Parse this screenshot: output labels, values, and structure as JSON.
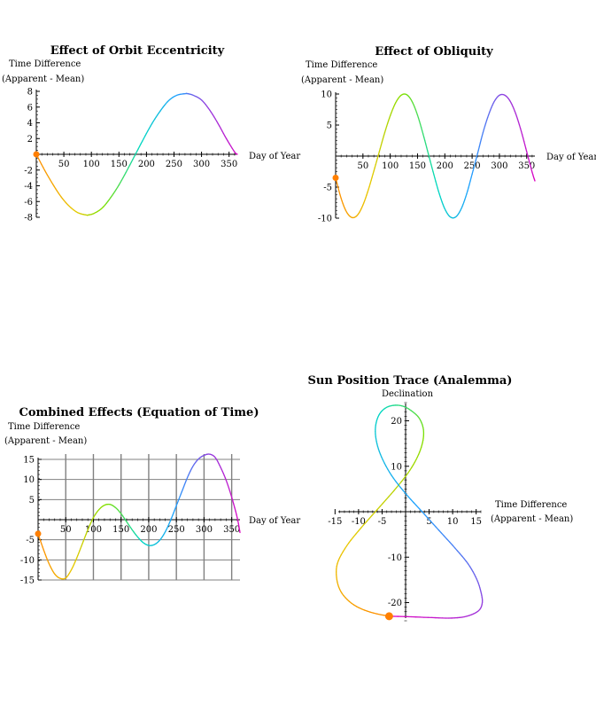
{
  "chart_data": [
    {
      "type": "line",
      "title": "Effect of Orbit Eccentricity",
      "ylabel": [
        "Time Difference",
        "(Apparent - Mean)"
      ],
      "xlabel": "Day of Year",
      "xlim": [
        0,
        365
      ],
      "ylim": [
        -8,
        8
      ],
      "xticks": [
        "50",
        "100",
        "150",
        "200",
        "250",
        "300",
        "350"
      ],
      "yticks": [
        "8",
        "6",
        "4",
        "2",
        "-2",
        "-4",
        "-6",
        "-8"
      ],
      "grid": false,
      "series": [
        {
          "x": [
            0,
            15,
            30,
            45,
            60,
            75,
            90,
            95,
            105,
            120,
            135,
            150,
            165,
            180,
            195,
            210,
            225,
            240,
            255,
            270,
            275,
            285,
            300,
            315,
            330,
            345,
            360,
            365
          ],
          "y": [
            0,
            -2.0,
            -3.8,
            -5.4,
            -6.6,
            -7.4,
            -7.7,
            -7.7,
            -7.5,
            -6.8,
            -5.5,
            -3.9,
            -2.0,
            0,
            2.0,
            3.9,
            5.5,
            6.8,
            7.5,
            7.7,
            7.7,
            7.5,
            6.9,
            5.6,
            3.9,
            2.0,
            0.3,
            0
          ]
        }
      ],
      "marker": {
        "x": 0,
        "y": 0
      }
    },
    {
      "type": "line",
      "title": "Effect of Obliquity",
      "ylabel": [
        "Time Difference",
        "(Apparent - Mean)"
      ],
      "xlabel": "Day of Year",
      "xlim": [
        0,
        365
      ],
      "ylim": [
        -10,
        10
      ],
      "xticks": [
        "50",
        "100",
        "150",
        "200",
        "250",
        "300",
        "350"
      ],
      "yticks": [
        "10",
        "5",
        "-5",
        "-10"
      ],
      "grid": false,
      "series": [
        {
          "x": [
            0,
            10,
            20,
            30,
            40,
            50,
            60,
            70,
            80,
            90,
            100,
            110,
            120,
            130,
            140,
            150,
            160,
            170,
            180,
            190,
            200,
            210,
            220,
            230,
            240,
            250,
            260,
            270,
            280,
            290,
            300,
            310,
            320,
            330,
            340,
            350,
            360,
            365
          ],
          "y": [
            -3.5,
            -6.8,
            -9.0,
            -9.9,
            -9.5,
            -7.9,
            -5.4,
            -2.4,
            0.7,
            3.8,
            6.5,
            8.6,
            9.8,
            9.9,
            8.8,
            6.6,
            3.6,
            0.3,
            -3.0,
            -6.1,
            -8.5,
            -9.8,
            -9.8,
            -8.5,
            -6.1,
            -2.9,
            0.4,
            3.8,
            6.6,
            8.7,
            9.8,
            9.8,
            8.8,
            6.8,
            4.0,
            0.7,
            -2.6,
            -4.0
          ]
        }
      ],
      "marker": {
        "x": 0,
        "y": -3.5
      }
    },
    {
      "type": "line",
      "title": "Combined Effects (Equation of Time)",
      "ylabel": [
        "Time Difference",
        "(Apparent - Mean)"
      ],
      "xlabel": "Day of Year",
      "xlim": [
        0,
        365
      ],
      "ylim": [
        -15,
        15
      ],
      "xticks": [
        "50",
        "100",
        "150",
        "200",
        "250",
        "300",
        "350"
      ],
      "yticks": [
        "15",
        "10",
        "5",
        "-5",
        "-10",
        "-15"
      ],
      "grid": true,
      "series": [
        {
          "x": [
            0,
            10,
            20,
            30,
            40,
            50,
            60,
            70,
            80,
            90,
            100,
            110,
            120,
            130,
            140,
            150,
            160,
            170,
            180,
            190,
            200,
            210,
            220,
            230,
            240,
            250,
            260,
            270,
            280,
            290,
            300,
            310,
            320,
            330,
            340,
            350,
            360,
            365
          ],
          "y": [
            -3.5,
            -7.5,
            -11.0,
            -13.5,
            -14.6,
            -14.5,
            -12.5,
            -9.5,
            -6.0,
            -2.5,
            0.5,
            2.5,
            3.6,
            3.8,
            3.0,
            1.5,
            -0.5,
            -2.5,
            -4.3,
            -5.7,
            -6.4,
            -6.2,
            -5.1,
            -3.0,
            0,
            3.5,
            7.0,
            10.5,
            13.3,
            15.1,
            16.0,
            16.3,
            15.5,
            13.0,
            9.8,
            5.6,
            0.5,
            -3.2
          ]
        }
      ],
      "marker": {
        "x": 0,
        "y": -3.5
      }
    },
    {
      "type": "line",
      "title": "Sun Position Trace (Analemma)",
      "ylabel": "Declination",
      "xlabel": [
        "Time Difference",
        "(Apparent - Mean)"
      ],
      "xlim": [
        -15,
        16
      ],
      "ylim": [
        -24,
        24
      ],
      "xticks": [
        "-15",
        "-10",
        "-5",
        "5",
        "10",
        "15"
      ],
      "yticks": [
        "20",
        "10",
        "-10",
        "-20"
      ],
      "grid": false,
      "series": [
        {
          "x": [
            -3.5,
            -7.5,
            -11.0,
            -13.5,
            -14.6,
            -14.5,
            -12.5,
            -9.5,
            -6.0,
            -2.5,
            0.5,
            2.5,
            3.6,
            3.8,
            3.0,
            1.5,
            -0.5,
            -2.5,
            -4.3,
            -5.7,
            -6.4,
            -6.2,
            -5.1,
            -3.0,
            0,
            3.5,
            7.0,
            10.5,
            13.3,
            15.1,
            16.0,
            16.3,
            15.5,
            13.0,
            9.8,
            5.6,
            0.5,
            -3.2
          ],
          "y": [
            -23.0,
            -22.1,
            -20.5,
            -18.0,
            -15.0,
            -11.4,
            -7.5,
            -3.6,
            0.5,
            4.6,
            8.5,
            12.0,
            15.2,
            18.0,
            20.4,
            22.0,
            23.2,
            23.4,
            22.8,
            21.2,
            18.6,
            15.5,
            12.0,
            8.0,
            4.0,
            0.0,
            -4.0,
            -8.0,
            -11.5,
            -14.8,
            -17.6,
            -20.0,
            -21.8,
            -23.0,
            -23.4,
            -23.3,
            -23.1,
            -23.0
          ]
        }
      ],
      "marker": {
        "x": -3.5,
        "y": -23.0
      }
    }
  ],
  "colors": {
    "gradient": [
      "#ff8c00",
      "#e8c800",
      "#80e000",
      "#00d8c0",
      "#20a0ff",
      "#9040e0",
      "#e000c0"
    ],
    "marker": "#ff7f00",
    "axis": "#000000",
    "grid": "#808080"
  }
}
